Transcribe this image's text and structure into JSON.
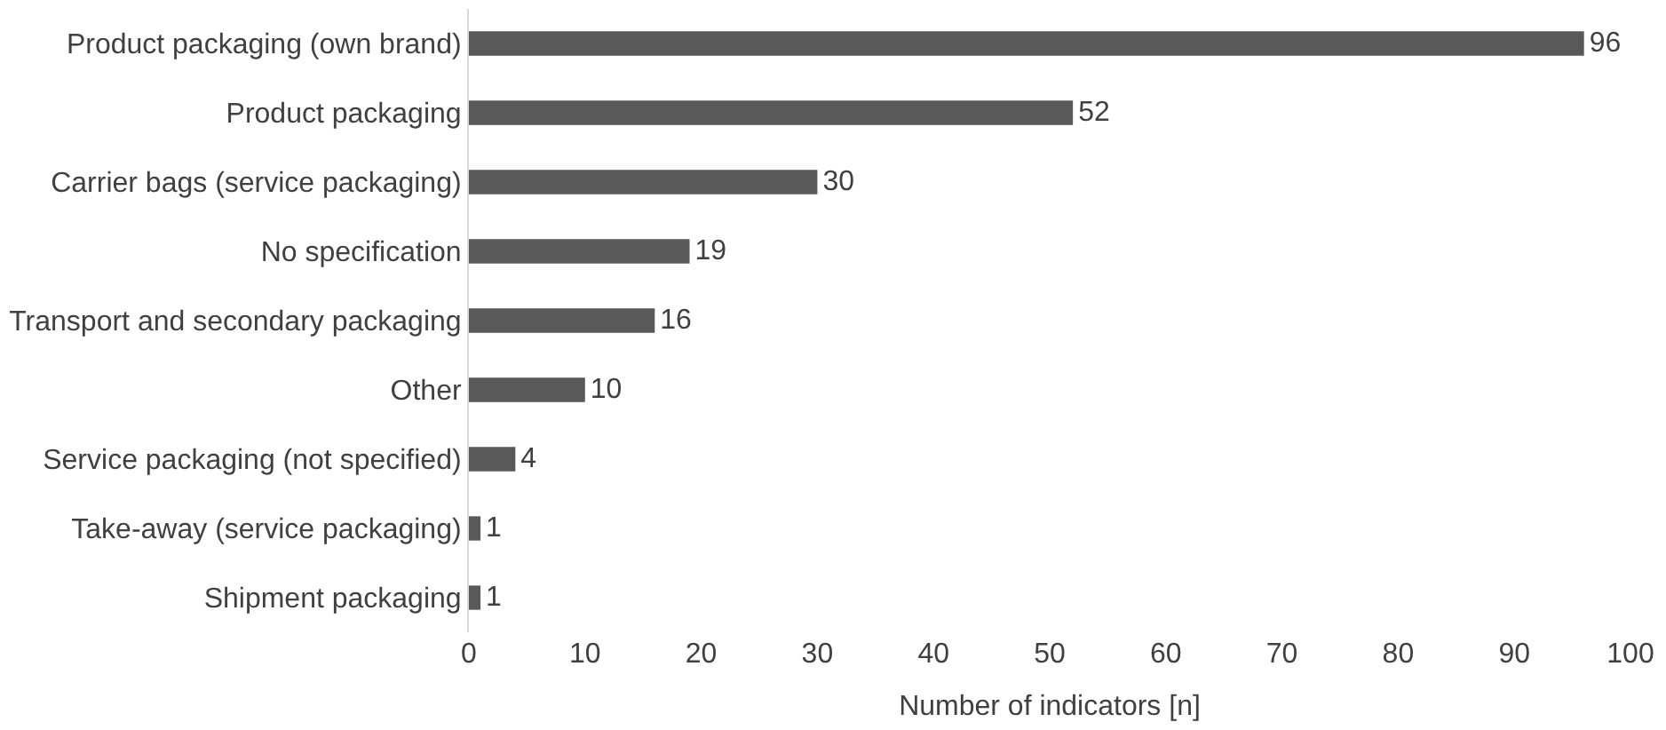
{
  "chart_data": {
    "type": "bar",
    "orientation": "horizontal",
    "xlabel": "Number of indicators [n]",
    "categories": [
      "Product packaging (own brand)",
      "Product packaging",
      "Carrier bags (service packaging)",
      "No specification",
      "Transport and secondary packaging",
      "Other",
      "Service packaging (not specified)",
      "Take-away (service packaging)",
      "Shipment packaging"
    ],
    "values": [
      96,
      52,
      30,
      19,
      16,
      10,
      4,
      1,
      1
    ],
    "color": "#595959",
    "xlim": [
      0,
      100
    ],
    "xticks": [
      0,
      10,
      20,
      30,
      40,
      50,
      60,
      70,
      80,
      90,
      100
    ],
    "data_labels": true,
    "grid": false
  }
}
